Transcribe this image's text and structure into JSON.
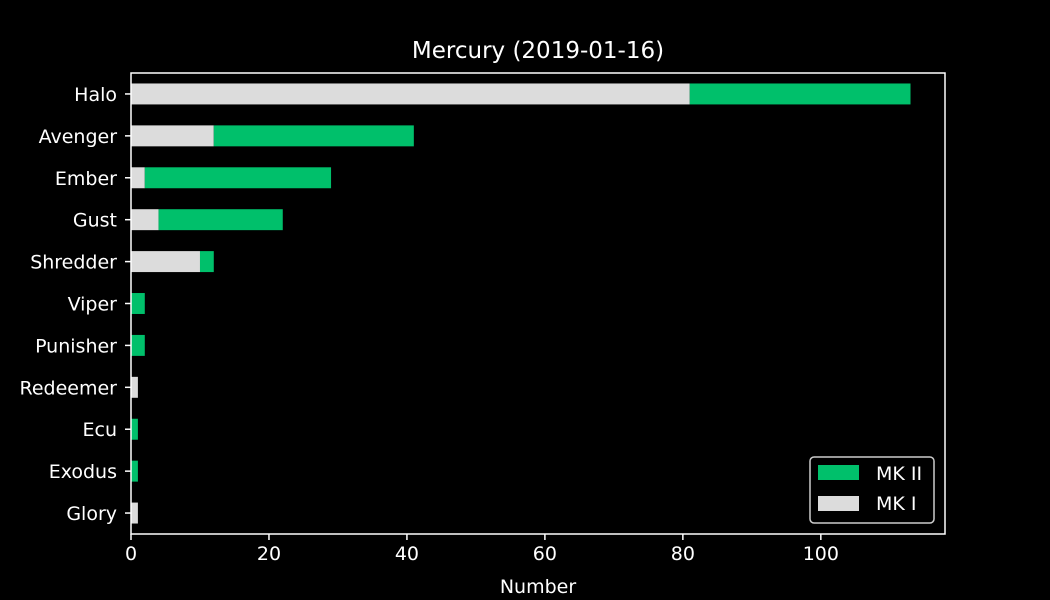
{
  "chart_data": {
    "type": "bar",
    "orientation": "horizontal",
    "stacked": true,
    "title": "Mercury (2019-01-16)",
    "xlabel": "Number",
    "ylabel": "",
    "xlim": [
      0,
      118
    ],
    "x_ticks": [
      0,
      20,
      40,
      60,
      80,
      100
    ],
    "categories": [
      "Halo",
      "Avenger",
      "Ember",
      "Gust",
      "Shredder",
      "Viper",
      "Punisher",
      "Redeemer",
      "Ecu",
      "Exodus",
      "Glory"
    ],
    "series": [
      {
        "name": "MK I",
        "values": [
          81,
          12,
          2,
          4,
          10,
          0,
          0,
          1,
          0,
          0,
          1
        ]
      },
      {
        "name": "MK II",
        "values": [
          32,
          29,
          27,
          18,
          2,
          2,
          2,
          0,
          1,
          1,
          0
        ]
      }
    ],
    "legend": {
      "placement": "bottom-right",
      "entries": [
        "MK II",
        "MK I"
      ]
    },
    "grid": false,
    "colors": {
      "background": "#000000",
      "axes": "#ffffff",
      "text": "#ffffff",
      "MK I": "#dcdcdc",
      "MK II": "#00c06b"
    }
  }
}
